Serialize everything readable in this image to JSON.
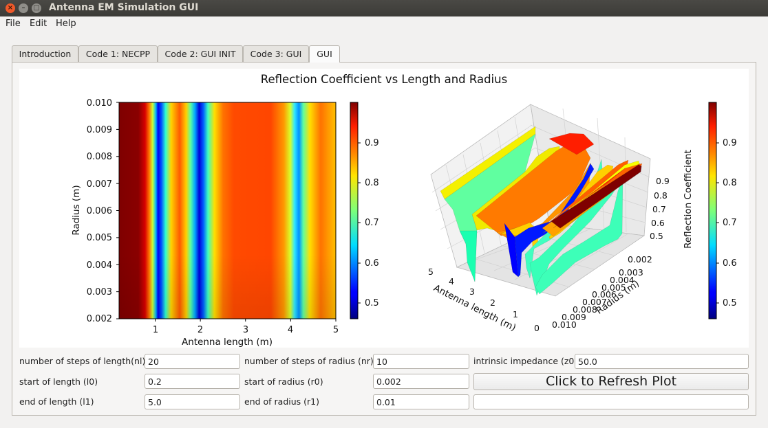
{
  "window": {
    "title": "Antenna EM Simulation GUI"
  },
  "menu": {
    "file": "File",
    "edit": "Edit",
    "help": "Help"
  },
  "tabs": [
    {
      "label": "Introduction"
    },
    {
      "label": "Code 1: NECPP"
    },
    {
      "label": "Code 2: GUI INIT"
    },
    {
      "label": "Code 3: GUI"
    },
    {
      "label": "GUI"
    }
  ],
  "figure": {
    "title": "Reflection Coefficient vs Length and Radius",
    "heatmap": {
      "xlabel": "Antenna length (m)",
      "ylabel": "Radius (m)",
      "xticks": [
        "1",
        "2",
        "3",
        "4",
        "5"
      ],
      "yticks": [
        "0.002",
        "0.003",
        "0.004",
        "0.005",
        "0.006",
        "0.007",
        "0.008",
        "0.009",
        "0.010"
      ]
    },
    "colorbar_ticks": [
      "0.5",
      "0.6",
      "0.7",
      "0.8",
      "0.9"
    ],
    "surface": {
      "xlabel": "Antenna length (m)",
      "ylabel": "Radius (m)",
      "zlabel": "Reflection Coefficient",
      "xticks": [
        "0",
        "1",
        "2",
        "3",
        "4",
        "5"
      ],
      "yticks": [
        "0.002",
        "0.003",
        "0.004",
        "0.005",
        "0.006",
        "0.007",
        "0.008",
        "0.009",
        "0.010"
      ],
      "zticks": [
        "0.5",
        "0.6",
        "0.7",
        "0.8",
        "0.9"
      ]
    }
  },
  "chart_data": [
    {
      "type": "heatmap",
      "title": "Reflection Coefficient vs Length and Radius",
      "xlabel": "Antenna length (m)",
      "ylabel": "Radius (m)",
      "xlim": [
        0.2,
        5.0
      ],
      "ylim": [
        0.002,
        0.01
      ],
      "colormap": "jet",
      "clim": [
        0.46,
        0.99
      ],
      "x": [
        0.2,
        0.45,
        0.7,
        0.85,
        0.95,
        1.05,
        1.15,
        1.3,
        1.5,
        1.7,
        1.85,
        1.95,
        2.05,
        2.15,
        2.3,
        2.4,
        2.5,
        2.65,
        2.85,
        3.1,
        3.5,
        3.8,
        3.95,
        4.05,
        4.15,
        4.25,
        4.35,
        4.5,
        4.7,
        5.0
      ],
      "z_profile_by_length": [
        0.99,
        0.99,
        0.98,
        0.92,
        0.72,
        0.5,
        0.58,
        0.8,
        0.88,
        0.74,
        0.6,
        0.5,
        0.47,
        0.52,
        0.66,
        0.72,
        0.8,
        0.88,
        0.93,
        0.93,
        0.93,
        0.9,
        0.8,
        0.66,
        0.6,
        0.68,
        0.8,
        0.87,
        0.88,
        0.8
      ]
    },
    {
      "type": "surface",
      "xlabel": "Antenna length (m)",
      "ylabel": "Radius (m)",
      "zlabel": "Reflection Coefficient",
      "xlim": [
        0,
        5
      ],
      "ylim": [
        0.002,
        0.01
      ],
      "zlim": [
        0.46,
        0.99
      ],
      "colormap": "jet"
    }
  ],
  "colors": {
    "titlebar": "#3c3b37",
    "close_button": "#f0592a"
  },
  "params": {
    "nl": {
      "label": "number of steps of length(nl)",
      "value": "20"
    },
    "nr": {
      "label": "number of steps of radius (nr)",
      "value": "10"
    },
    "z0": {
      "label": "intrinsic impedance (z0",
      "value": "50.0"
    },
    "l0": {
      "label": "start of length (l0)",
      "value": "0.2"
    },
    "r0": {
      "label": "start of radius (r0)",
      "value": "0.002"
    },
    "l1": {
      "label": "end of length (l1)",
      "value": "5.0"
    },
    "r1": {
      "label": "end of radius (r1)",
      "value": "0.01"
    },
    "refresh_label": "Click to Refresh Plot",
    "status_value": ""
  }
}
